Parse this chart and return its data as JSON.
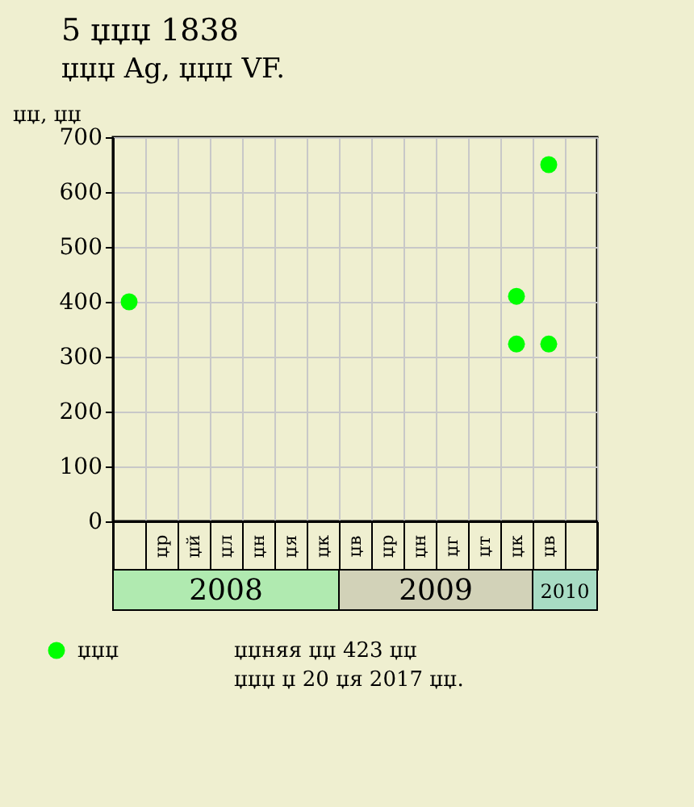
{
  "chart_data": {
    "type": "scatter",
    "title": "5 џџџ 1838",
    "subtitle": "џџџ Ag, џџџ VF.",
    "ylabel": "џџ, џџ",
    "categories": [
      null,
      "џр",
      "џй",
      "џл",
      "џн",
      "џя",
      "џк",
      "џв",
      "џр",
      "џн",
      "џг",
      "џт",
      "џк",
      "џв",
      null
    ],
    "series": [
      {
        "name": "џџџ",
        "color": "#00ff00",
        "values": [
          400,
          null,
          null,
          null,
          null,
          null,
          null,
          null,
          null,
          null,
          null,
          null,
          410,
          650,
          null
        ]
      },
      {
        "color": "#00ff00",
        "values": [
          null,
          null,
          null,
          null,
          null,
          null,
          null,
          null,
          null,
          null,
          null,
          null,
          323,
          323,
          null
        ]
      }
    ],
    "ylim": [
      0,
      700
    ],
    "yticks": [
      0,
      100,
      200,
      300,
      400,
      500,
      600,
      700
    ],
    "grid": true,
    "marker": "circle",
    "legend": "bottom left",
    "annotations": [
      "2008",
      "2009",
      "2010",
      "џџняя џџ 423 џџ",
      "џџџ џ 20 џя 2017 џџ."
    ]
  }
}
